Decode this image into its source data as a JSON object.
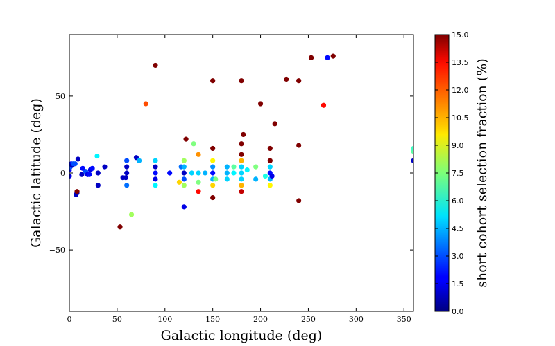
{
  "chart_data": {
    "type": "scatter",
    "title": "",
    "xlabel": "Galactic longitude (deg)",
    "ylabel": "Galactic latitude (deg)",
    "xlim": [
      0,
      360
    ],
    "ylim": [
      -90,
      90
    ],
    "xticks": [
      0,
      50,
      100,
      150,
      200,
      250,
      300,
      350
    ],
    "yticks": [
      -50,
      0,
      50
    ],
    "grid": false,
    "colorbar": {
      "label": "short cohort selection fraction (%)",
      "range": [
        0,
        15
      ],
      "ticks": [
        "0.0",
        "1.5",
        "3.0",
        "4.5",
        "6.0",
        "7.5",
        "9.0",
        "10.5",
        "12.0",
        "13.5",
        "15.0"
      ],
      "colormap": "jet"
    },
    "points": [
      {
        "x": 0,
        "y": -2,
        "c": 1.5
      },
      {
        "x": 0,
        "y": 2,
        "c": 2
      },
      {
        "x": 1,
        "y": 4,
        "c": 3
      },
      {
        "x": 2,
        "y": 6,
        "c": 2
      },
      {
        "x": 3,
        "y": 5,
        "c": 1
      },
      {
        "x": 4,
        "y": 6,
        "c": 3
      },
      {
        "x": 6,
        "y": 6,
        "c": 3
      },
      {
        "x": 7,
        "y": -14,
        "c": 1
      },
      {
        "x": 8,
        "y": -13,
        "c": 1
      },
      {
        "x": 8,
        "y": -12,
        "c": 15
      },
      {
        "x": 9,
        "y": 9,
        "c": 1
      },
      {
        "x": 13,
        "y": -1,
        "c": 1
      },
      {
        "x": 14,
        "y": 3,
        "c": 2
      },
      {
        "x": 17,
        "y": 1,
        "c": 3
      },
      {
        "x": 19,
        "y": -1,
        "c": 1.5
      },
      {
        "x": 21,
        "y": -1,
        "c": 2
      },
      {
        "x": 22,
        "y": 2,
        "c": 1.5
      },
      {
        "x": 24,
        "y": 3,
        "c": 2
      },
      {
        "x": 29,
        "y": 11,
        "c": 5.5
      },
      {
        "x": 30,
        "y": -8,
        "c": 1
      },
      {
        "x": 30,
        "y": 0,
        "c": 1
      },
      {
        "x": 37,
        "y": 4,
        "c": 1
      },
      {
        "x": 53,
        "y": -35,
        "c": 15
      },
      {
        "x": 56,
        "y": -3,
        "c": 1
      },
      {
        "x": 59,
        "y": -3,
        "c": 1
      },
      {
        "x": 60,
        "y": -8,
        "c": 3.5
      },
      {
        "x": 60,
        "y": 0,
        "c": 1
      },
      {
        "x": 60,
        "y": 4,
        "c": 1
      },
      {
        "x": 60,
        "y": 8,
        "c": 3
      },
      {
        "x": 65,
        "y": -27,
        "c": 8
      },
      {
        "x": 70,
        "y": 10,
        "c": 1
      },
      {
        "x": 73,
        "y": 8,
        "c": 4.5
      },
      {
        "x": 80,
        "y": 45,
        "c": 12
      },
      {
        "x": 90,
        "y": 70,
        "c": 15
      },
      {
        "x": 90,
        "y": -8,
        "c": 5.5
      },
      {
        "x": 90,
        "y": -4,
        "c": 1.5
      },
      {
        "x": 90,
        "y": 0,
        "c": 2
      },
      {
        "x": 90,
        "y": 4,
        "c": 1
      },
      {
        "x": 90,
        "y": 8,
        "c": 5
      },
      {
        "x": 105,
        "y": 0,
        "c": 2
      },
      {
        "x": 115,
        "y": -6,
        "c": 10
      },
      {
        "x": 117,
        "y": 4,
        "c": 3.5
      },
      {
        "x": 120,
        "y": -8,
        "c": 8
      },
      {
        "x": 120,
        "y": -4,
        "c": 3
      },
      {
        "x": 120,
        "y": 0,
        "c": 1
      },
      {
        "x": 120,
        "y": 4,
        "c": 4.5
      },
      {
        "x": 120,
        "y": 8,
        "c": 8
      },
      {
        "x": 120,
        "y": -22,
        "c": 1.5
      },
      {
        "x": 122,
        "y": 22,
        "c": 15
      },
      {
        "x": 128,
        "y": 0,
        "c": 5
      },
      {
        "x": 130,
        "y": 19,
        "c": 7.5
      },
      {
        "x": 135,
        "y": -12,
        "c": 13
      },
      {
        "x": 135,
        "y": 0,
        "c": 5
      },
      {
        "x": 135,
        "y": -6,
        "c": 7.5
      },
      {
        "x": 135,
        "y": 12,
        "c": 11
      },
      {
        "x": 142,
        "y": 0,
        "c": 4.5
      },
      {
        "x": 150,
        "y": 60,
        "c": 15
      },
      {
        "x": 150,
        "y": 16,
        "c": 15
      },
      {
        "x": 150,
        "y": -16,
        "c": 15
      },
      {
        "x": 150,
        "y": -8,
        "c": 10
      },
      {
        "x": 150,
        "y": -4,
        "c": 4.5
      },
      {
        "x": 150,
        "y": 0,
        "c": 2
      },
      {
        "x": 150,
        "y": 4,
        "c": 4
      },
      {
        "x": 150,
        "y": 8,
        "c": 9.5
      },
      {
        "x": 153,
        "y": -4,
        "c": 7.5
      },
      {
        "x": 165,
        "y": -4,
        "c": 5
      },
      {
        "x": 165,
        "y": 0,
        "c": 4.5
      },
      {
        "x": 165,
        "y": 4,
        "c": 4.5
      },
      {
        "x": 172,
        "y": 0,
        "c": 5.5
      },
      {
        "x": 172,
        "y": 4,
        "c": 7
      },
      {
        "x": 180,
        "y": 60,
        "c": 15
      },
      {
        "x": 180,
        "y": 19,
        "c": 15
      },
      {
        "x": 180,
        "y": 12,
        "c": 15
      },
      {
        "x": 180,
        "y": -12,
        "c": 14
      },
      {
        "x": 180,
        "y": -8,
        "c": 10.5
      },
      {
        "x": 180,
        "y": -4,
        "c": 5
      },
      {
        "x": 180,
        "y": 0,
        "c": 5
      },
      {
        "x": 180,
        "y": 4,
        "c": 5
      },
      {
        "x": 180,
        "y": 8,
        "c": 10.5
      },
      {
        "x": 182,
        "y": 25,
        "c": 15
      },
      {
        "x": 186,
        "y": 2,
        "c": 5.5
      },
      {
        "x": 195,
        "y": -4,
        "c": 4.5
      },
      {
        "x": 195,
        "y": 4,
        "c": 7.5
      },
      {
        "x": 200,
        "y": 45,
        "c": 15
      },
      {
        "x": 205,
        "y": -2,
        "c": 6
      },
      {
        "x": 210,
        "y": -8,
        "c": 9.5
      },
      {
        "x": 210,
        "y": -4,
        "c": 4.5
      },
      {
        "x": 210,
        "y": 0,
        "c": 2
      },
      {
        "x": 210,
        "y": 4,
        "c": 5
      },
      {
        "x": 210,
        "y": 8,
        "c": 15
      },
      {
        "x": 210,
        "y": 16,
        "c": 15
      },
      {
        "x": 212,
        "y": -2,
        "c": 1.5
      },
      {
        "x": 215,
        "y": 32,
        "c": 15
      },
      {
        "x": 227,
        "y": 61,
        "c": 15
      },
      {
        "x": 240,
        "y": 60,
        "c": 15
      },
      {
        "x": 240,
        "y": 18,
        "c": 15
      },
      {
        "x": 240,
        "y": -18,
        "c": 15
      },
      {
        "x": 253,
        "y": 75,
        "c": 15
      },
      {
        "x": 266,
        "y": 44,
        "c": 13
      },
      {
        "x": 270,
        "y": 75,
        "c": 2
      },
      {
        "x": 276,
        "y": 76,
        "c": 15
      },
      {
        "x": 360,
        "y": 8,
        "c": 1
      },
      {
        "x": 360,
        "y": 14,
        "c": 7
      },
      {
        "x": 360,
        "y": 16,
        "c": 6.5
      }
    ]
  }
}
